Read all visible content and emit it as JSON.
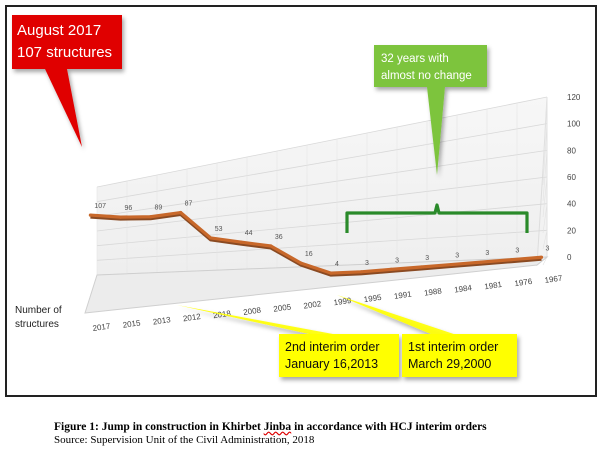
{
  "chart_data": {
    "type": "line",
    "categories": [
      "2017",
      "2015",
      "2013",
      "2012",
      "2018",
      "2008",
      "2005",
      "2002",
      "1999",
      "1995",
      "1991",
      "1988",
      "1984",
      "1981",
      "1976",
      "1967"
    ],
    "values": [
      107,
      96,
      89,
      87,
      53,
      44,
      36,
      16,
      4,
      3,
      3,
      3,
      3,
      3,
      3,
      3
    ],
    "ylim": [
      0,
      120
    ],
    "yticks": [
      0,
      20,
      40,
      60,
      80,
      100,
      120
    ],
    "ylabel": "Number of structures",
    "grid": true,
    "style": "3d",
    "line_color": "#c8682a",
    "annotations": [
      {
        "id": "aug2017",
        "line1": "August 2017",
        "line2": "107 structures",
        "color": "#e00000"
      },
      {
        "id": "nochange",
        "line1": "32 years with",
        "line2": "almost no change",
        "color": "#7dc43c"
      },
      {
        "id": "order2",
        "line1": "2nd interim order",
        "line2": "January 16,2013",
        "color": "#ffff00"
      },
      {
        "id": "order1",
        "line1": "1st interim order",
        "line2": "March 29,2000",
        "color": "#ffff00"
      }
    ]
  },
  "caption": {
    "title_prefix": "Figure 1: Jump in construction in Khirbet ",
    "title_underlined": "Jinba",
    "title_suffix": " in accordance with HCJ interim orders",
    "source": "Source: Supervision Unit of the Civil Administration, 2018"
  }
}
